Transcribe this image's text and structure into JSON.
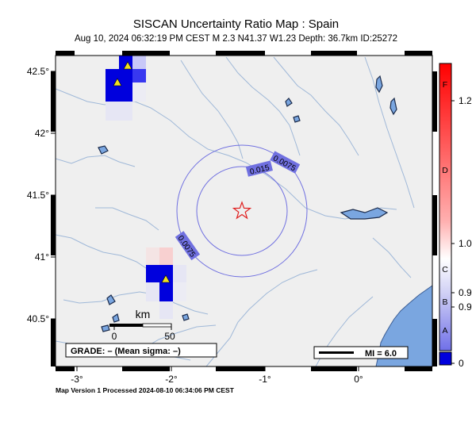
{
  "header": {
    "title": "SISCAN Uncertainty Ratio Map : Spain",
    "subtitle": "Aug 10, 2024 06:32:19 PM CEST   M 2.3   N41.37 W1.23   Depth: 36.7km   ID:25272"
  },
  "map": {
    "lon_labels": [
      "-3°",
      "-2°",
      "-1°",
      "0°"
    ],
    "lat_labels": [
      "42.5°",
      "42°",
      "41.5°",
      "41°",
      "40.5°"
    ],
    "contour_labels": [
      "0.0075",
      "0.015",
      "0.0075"
    ],
    "scale_bar": {
      "unit": "km",
      "ticks": [
        "0",
        "50"
      ]
    },
    "grade_box": "GRADE: – (Mean sigma: –)",
    "mi_legend": "MI = 6.0",
    "epicenter_symbol": "star",
    "station_symbol": "triangle",
    "colors": {
      "land": "#efefef",
      "water": "#7aa6e0",
      "rivers": "#9fb8d8",
      "contour": "#7070e0",
      "epicenter": "#e02020",
      "station": "#f0e020"
    }
  },
  "colorbar": {
    "grade_letters": [
      "F",
      "D",
      "C",
      "B",
      "A"
    ],
    "value_labels": [
      "1.2",
      "1.0",
      "0.9",
      "0.9",
      "0"
    ]
  },
  "footer": {
    "text": "Map Version 1 Processed 2024-08-10 06:34:06 PM CEST"
  }
}
